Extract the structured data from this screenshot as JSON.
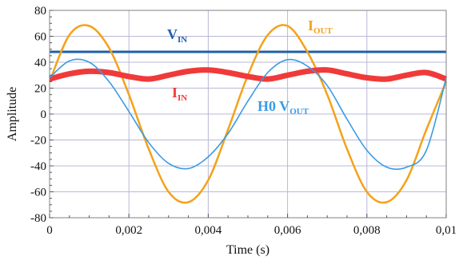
{
  "chart_data": {
    "type": "line",
    "title": "",
    "xlabel": "Time (s)",
    "ylabel": "Amplitude",
    "xlim": [
      0,
      0.01
    ],
    "ylim": [
      -80,
      80
    ],
    "grid": true,
    "xticks": [
      0,
      0.002,
      0.004,
      0.006,
      0.008,
      0.01
    ],
    "xtick_labels": [
      "0",
      "0,002",
      "0,004",
      "0,006",
      "0,008",
      "0,01"
    ],
    "yticks": [
      -80,
      -60,
      -40,
      -20,
      0,
      20,
      40,
      60,
      80
    ],
    "ytick_labels": [
      "-80",
      "-60",
      "-40",
      "-20",
      "0",
      "20",
      "40",
      "60",
      "80"
    ],
    "series": [
      {
        "name": "V_IN",
        "label_main": "V",
        "label_sub": "IN",
        "color": "#1f5fa8",
        "x": [
          0,
          0.001,
          0.002,
          0.003,
          0.004,
          0.005,
          0.006,
          0.007,
          0.008,
          0.009,
          0.01
        ],
        "y": [
          48,
          48,
          48,
          48,
          48,
          48,
          48,
          48,
          48,
          48,
          48
        ]
      },
      {
        "name": "I_OUT",
        "label_main": "I",
        "label_sub": "OUT",
        "color": "#f4a21a",
        "x": [
          0,
          0.0005,
          0.001,
          0.0015,
          0.002,
          0.0025,
          0.003,
          0.0035,
          0.004,
          0.0045,
          0.005,
          0.0055,
          0.006,
          0.0065,
          0.007,
          0.0075,
          0.008,
          0.0085,
          0.009,
          0.0095,
          0.01
        ],
        "y": [
          25,
          61,
          68,
          51,
          15,
          -27,
          -60,
          -68,
          -51,
          -12,
          30,
          61,
          68,
          48,
          15,
          -27,
          -60,
          -68,
          -51,
          -12,
          25
        ]
      },
      {
        "name": "I_IN",
        "label_main": "I",
        "label_sub": "IN",
        "color": "#f03a3a",
        "x": [
          0,
          0.0005,
          0.001,
          0.0015,
          0.002,
          0.0025,
          0.003,
          0.0035,
          0.004,
          0.0045,
          0.005,
          0.0055,
          0.006,
          0.0065,
          0.007,
          0.0075,
          0.008,
          0.0085,
          0.009,
          0.0095,
          0.01
        ],
        "y": [
          27,
          31,
          33,
          32,
          29,
          27,
          30,
          33,
          34,
          32,
          29,
          27,
          30,
          33,
          34,
          31,
          28,
          27,
          30,
          32,
          27
        ]
      },
      {
        "name": "H0 V_OUT",
        "label_main": "H0 V",
        "label_sub": "OUT",
        "color": "#3a9be6",
        "x": [
          0,
          0.0005,
          0.001,
          0.0015,
          0.002,
          0.0025,
          0.003,
          0.0035,
          0.004,
          0.0045,
          0.005,
          0.0055,
          0.006,
          0.0065,
          0.007,
          0.0075,
          0.008,
          0.0085,
          0.009,
          0.0095,
          0.01
        ],
        "y": [
          28,
          41,
          40,
          25,
          2,
          -22,
          -38,
          -42,
          -33,
          -15,
          10,
          32,
          42,
          37,
          22,
          -4,
          -28,
          -41,
          -41,
          -28,
          28
        ]
      }
    ]
  }
}
